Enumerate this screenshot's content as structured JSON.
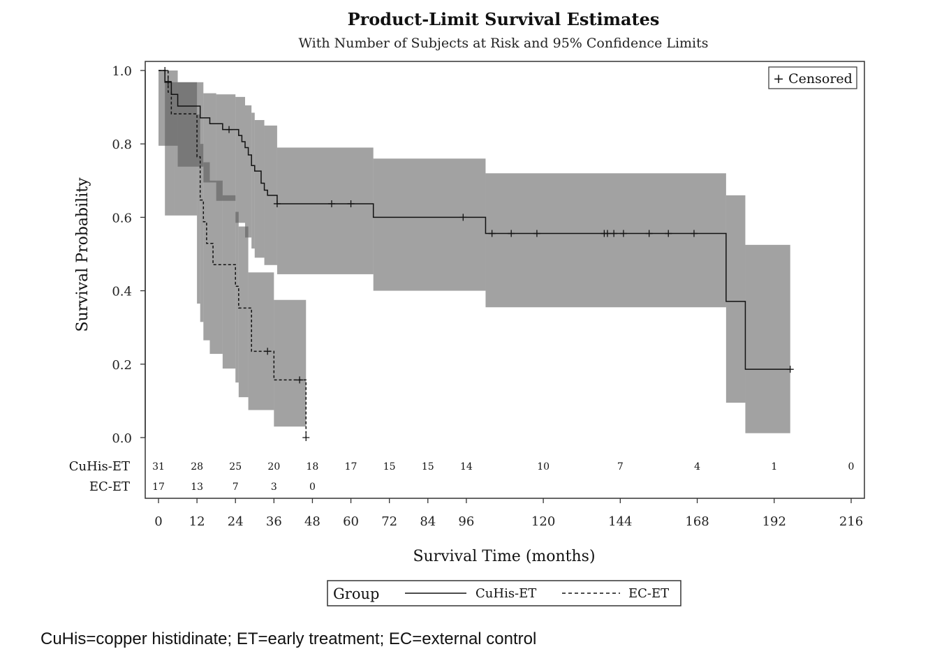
{
  "chart_data": {
    "type": "line",
    "title": "Product-Limit Survival Estimates",
    "subtitle": "With Number of Subjects at Risk and 95% Confidence Limits",
    "xlabel": "Survival Time (months)",
    "ylabel": "Survival Probability",
    "xlim": [
      0,
      216
    ],
    "ylim": [
      0,
      1.0
    ],
    "x_ticks": [
      "0",
      "12",
      "24",
      "36",
      "48",
      "60",
      "72",
      "84",
      "96",
      "120",
      "144",
      "168",
      "192",
      "216"
    ],
    "y_ticks": [
      "0.0",
      "0.2",
      "0.4",
      "0.6",
      "0.8",
      "1.0"
    ],
    "grid": false,
    "censored_legend": "+ Censored",
    "legend": {
      "title": "Group",
      "placement": "bottom",
      "entries": [
        {
          "label": "CuHis-ET",
          "style": "solid"
        },
        {
          "label": "EC-ET",
          "style": "dashed"
        }
      ]
    },
    "risk_times": [
      0,
      12,
      24,
      36,
      48,
      60,
      72,
      84,
      96,
      120,
      144,
      168,
      192,
      216
    ],
    "risk_rows": [
      {
        "label": "CuHis-ET",
        "counts": [
          "31",
          "28",
          "25",
          "20",
          "18",
          "17",
          "15",
          "15",
          "14",
          "10",
          "7",
          "4",
          "1",
          "0"
        ]
      },
      {
        "label": "EC-ET",
        "counts": [
          "17",
          "13",
          "7",
          "3",
          "0"
        ]
      }
    ],
    "series": [
      {
        "name": "CuHis-ET",
        "style": "solid",
        "steps": [
          [
            0,
            1.0
          ],
          [
            2,
            0.968
          ],
          [
            4,
            0.935
          ],
          [
            6,
            0.903
          ],
          [
            13,
            0.871
          ],
          [
            16,
            0.855
          ],
          [
            20,
            0.839
          ],
          [
            25,
            0.823
          ],
          [
            26,
            0.806
          ],
          [
            27,
            0.79
          ],
          [
            28,
            0.77
          ],
          [
            29,
            0.741
          ],
          [
            30,
            0.726
          ],
          [
            32,
            0.693
          ],
          [
            33,
            0.674
          ],
          [
            34,
            0.66
          ],
          [
            37,
            0.637
          ],
          [
            67,
            0.6
          ],
          [
            102,
            0.556
          ],
          [
            177,
            0.371
          ],
          [
            183,
            0.186
          ],
          [
            197,
            0.186
          ]
        ],
        "censored": [
          [
            22,
            0.839
          ],
          [
            37,
            0.637
          ],
          [
            54,
            0.637
          ],
          [
            60,
            0.637
          ],
          [
            95,
            0.6
          ],
          [
            104,
            0.556
          ],
          [
            110,
            0.556
          ],
          [
            118,
            0.556
          ],
          [
            139,
            0.556
          ],
          [
            140,
            0.556
          ],
          [
            142,
            0.556
          ],
          [
            145,
            0.556
          ],
          [
            153,
            0.556
          ],
          [
            159,
            0.556
          ],
          [
            167,
            0.556
          ],
          [
            197,
            0.186
          ]
        ],
        "ci_steps": [
          [
            0,
            0.795,
            1.0
          ],
          [
            6,
            0.738,
            0.968
          ],
          [
            14,
            0.695,
            0.938
          ],
          [
            18,
            0.645,
            0.935
          ],
          [
            24,
            0.585,
            0.928
          ],
          [
            27,
            0.545,
            0.905
          ],
          [
            29,
            0.515,
            0.885
          ],
          [
            30,
            0.49,
            0.865
          ],
          [
            33,
            0.47,
            0.85
          ],
          [
            37,
            0.445,
            0.79
          ],
          [
            67,
            0.4,
            0.76
          ],
          [
            102,
            0.355,
            0.72
          ],
          [
            177,
            0.095,
            0.66
          ],
          [
            183,
            0.012,
            0.525
          ],
          [
            197,
            0.012,
            0.525
          ]
        ]
      },
      {
        "name": "EC-ET",
        "style": "dashed",
        "steps": [
          [
            0,
            1.0
          ],
          [
            3,
            0.941
          ],
          [
            4,
            0.882
          ],
          [
            12,
            0.765
          ],
          [
            13,
            0.647
          ],
          [
            14,
            0.588
          ],
          [
            15,
            0.529
          ],
          [
            17,
            0.471
          ],
          [
            24,
            0.412
          ],
          [
            25,
            0.353
          ],
          [
            29,
            0.235
          ],
          [
            36,
            0.157
          ],
          [
            46,
            0.0
          ]
        ],
        "censored": [
          [
            2,
            1.0
          ],
          [
            3,
            0.97
          ],
          [
            34,
            0.235
          ],
          [
            44,
            0.157
          ],
          [
            46,
            0.0
          ]
        ],
        "ci_steps": [
          [
            2,
            0.605,
            0.968
          ],
          [
            5,
            0.605,
            0.968
          ],
          [
            12,
            0.365,
            0.88
          ],
          [
            13,
            0.315,
            0.8
          ],
          [
            14,
            0.265,
            0.75
          ],
          [
            16,
            0.228,
            0.7
          ],
          [
            20,
            0.188,
            0.66
          ],
          [
            24,
            0.15,
            0.615
          ],
          [
            25,
            0.11,
            0.575
          ],
          [
            28,
            0.075,
            0.45
          ],
          [
            36,
            0.03,
            0.375
          ],
          [
            46,
            0.03,
            0.375
          ]
        ]
      }
    ]
  },
  "footnote": "CuHis=copper histidinate; ET=early treatment; EC=external control"
}
